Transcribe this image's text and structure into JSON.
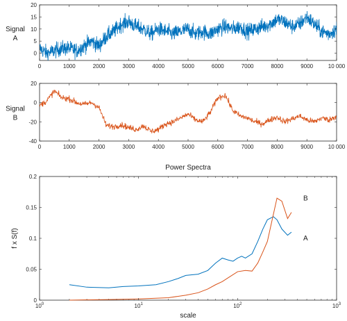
{
  "chart_data": [
    {
      "type": "line",
      "ylabel_lines": [
        "Signal",
        "A"
      ],
      "xlim": [
        0,
        10000
      ],
      "ylim": [
        -3,
        20
      ],
      "xticks": [
        0,
        1000,
        2000,
        3000,
        4000,
        5000,
        6000,
        7000,
        8000,
        9000,
        10000
      ],
      "xtick_labels": [
        "0",
        "1000",
        "2000",
        "3000",
        "4000",
        "5000",
        "6000",
        "7000",
        "8000",
        "9000",
        "10 000"
      ],
      "yticks": [
        0,
        5,
        10,
        15,
        20
      ],
      "ytick_labels": [
        "0",
        "5",
        "10",
        "15",
        "20"
      ],
      "grid": false,
      "color": "#0072BD",
      "x": [
        0,
        250,
        500,
        750,
        1000,
        1250,
        1500,
        1750,
        2000,
        2250,
        2500,
        2750,
        3000,
        3250,
        3500,
        3750,
        4000,
        4250,
        4500,
        4750,
        5000,
        5250,
        5500,
        5750,
        6000,
        6250,
        6500,
        6750,
        7000,
        7250,
        7500,
        7750,
        8000,
        8250,
        8500,
        8750,
        9000,
        9250,
        9500,
        9750,
        10000
      ],
      "y": [
        2,
        0,
        1,
        2,
        2,
        1,
        3,
        5,
        3,
        7,
        9,
        12,
        13,
        11,
        10,
        8,
        10,
        9,
        8,
        9,
        10,
        8,
        9,
        8,
        10,
        11,
        10,
        11,
        9,
        10,
        11,
        12,
        14,
        13,
        11,
        12,
        15,
        12,
        9,
        8,
        10
      ]
    },
    {
      "type": "line",
      "ylabel_lines": [
        "Signal",
        "B"
      ],
      "xlim": [
        0,
        10000
      ],
      "ylim": [
        -40,
        20
      ],
      "xticks": [
        0,
        1000,
        2000,
        3000,
        4000,
        5000,
        6000,
        7000,
        8000,
        9000,
        10000
      ],
      "xtick_labels": [
        "0",
        "1000",
        "2000",
        "3000",
        "4000",
        "5000",
        "6000",
        "7000",
        "8000",
        "9000",
        "10 000"
      ],
      "yticks": [
        -40,
        -20,
        0,
        20
      ],
      "ytick_labels": [
        "-40",
        "-20",
        "0",
        "20"
      ],
      "grid": false,
      "color": "#D95319",
      "x": [
        0,
        250,
        500,
        750,
        1000,
        1250,
        1500,
        1750,
        2000,
        2250,
        2500,
        2750,
        3000,
        3250,
        3500,
        3750,
        4000,
        4250,
        4500,
        4750,
        5000,
        5250,
        5500,
        5750,
        6000,
        6250,
        6500,
        6750,
        7000,
        7250,
        7500,
        7750,
        8000,
        8250,
        8500,
        8750,
        9000,
        9250,
        9500,
        9750,
        10000
      ],
      "y": [
        -3,
        2,
        12,
        5,
        4,
        0,
        -2,
        0,
        -5,
        -24,
        -25,
        -23,
        -26,
        -28,
        -24,
        -30,
        -28,
        -22,
        -20,
        -16,
        -12,
        -18,
        -20,
        -10,
        5,
        8,
        -8,
        -14,
        -16,
        -20,
        -22,
        -18,
        -15,
        -20,
        -17,
        -14,
        -18,
        -20,
        -16,
        -18,
        -14
      ]
    },
    {
      "type": "line",
      "title": "Power Spectra",
      "xlabel": "scale",
      "ylabel": "f x S(f)",
      "xscale": "log",
      "xlim": [
        1,
        1000
      ],
      "ylim": [
        0,
        0.2
      ],
      "xticks": [
        1,
        10,
        100,
        1000
      ],
      "xtick_labels": [
        "10",
        "10",
        "10",
        "10"
      ],
      "xtick_exponents": [
        "0",
        "1",
        "2",
        "3"
      ],
      "yticks": [
        0,
        0.05,
        0.1,
        0.15,
        0.2
      ],
      "ytick_labels": [
        "0",
        "0.05",
        "0.1",
        "0.15",
        "0.2"
      ],
      "grid": false,
      "series": [
        {
          "name": "A",
          "color": "#0072BD",
          "x": [
            2,
            3,
            5,
            7,
            10,
            15,
            20,
            25,
            30,
            40,
            50,
            60,
            70,
            80,
            90,
            100,
            110,
            120,
            140,
            160,
            180,
            200,
            230,
            250,
            280,
            320,
            350
          ],
          "y": [
            0.025,
            0.021,
            0.02,
            0.022,
            0.023,
            0.025,
            0.03,
            0.035,
            0.04,
            0.042,
            0.048,
            0.06,
            0.068,
            0.065,
            0.063,
            0.068,
            0.071,
            0.068,
            0.075,
            0.095,
            0.115,
            0.13,
            0.135,
            0.13,
            0.115,
            0.105,
            0.11
          ]
        },
        {
          "name": "B",
          "color": "#D95319",
          "x": [
            2,
            5,
            10,
            20,
            30,
            40,
            50,
            60,
            70,
            80,
            100,
            120,
            140,
            160,
            180,
            200,
            220,
            250,
            280,
            320,
            350
          ],
          "y": [
            0.0,
            0.001,
            0.002,
            0.004,
            0.008,
            0.012,
            0.018,
            0.025,
            0.03,
            0.036,
            0.046,
            0.048,
            0.047,
            0.06,
            0.078,
            0.095,
            0.125,
            0.165,
            0.16,
            0.132,
            0.142
          ]
        }
      ]
    }
  ]
}
